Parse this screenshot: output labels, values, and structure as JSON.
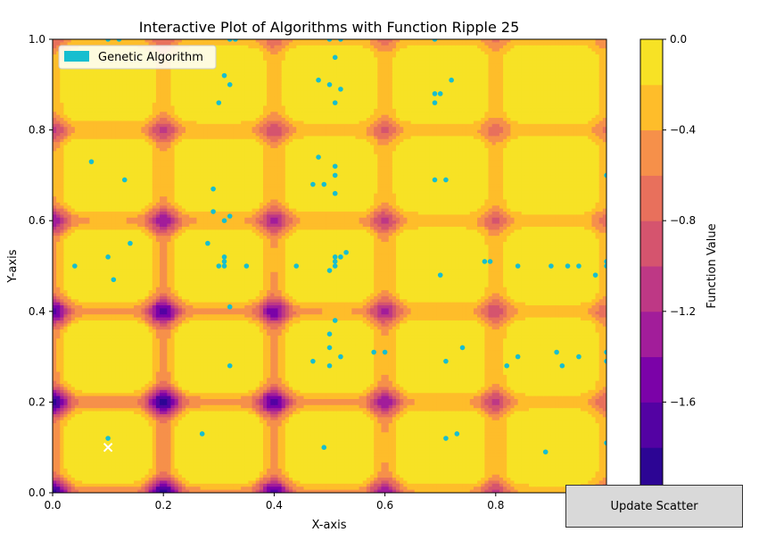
{
  "chart_data": {
    "type": "scatter",
    "title": "Interactive Plot of Algorithms with Function Ripple 25",
    "xlabel": "X-axis",
    "ylabel": "Y-axis",
    "xlim": [
      0.0,
      1.0
    ],
    "ylim": [
      0.0,
      1.0
    ],
    "x_ticks": [
      "0.0",
      "0.2",
      "0.4",
      "0.6",
      "0.8"
    ],
    "y_ticks": [
      "0.0",
      "0.2",
      "0.4",
      "0.6",
      "0.8",
      "1.0"
    ],
    "grid": false,
    "background": "filled contour of Ripple 25 function",
    "legend": {
      "position": "top-left",
      "entries": [
        {
          "label": "Genetic Algorithm",
          "color": "#17becf"
        }
      ]
    },
    "colorbar": {
      "label": "Function Value",
      "ticks": [
        "0.0",
        "−0.4",
        "−0.8",
        "−1.2",
        "−1.6"
      ],
      "range": [
        -2.0,
        0.0
      ],
      "colormap": "plasma",
      "levels": [
        "#2c0594",
        "#5302a3",
        "#7b02a8",
        "#a21d9a",
        "#be3885",
        "#d5546e",
        "#e8705c",
        "#f6904a",
        "#febd2a",
        "#f7e225"
      ]
    },
    "series": [
      {
        "name": "Genetic Algorithm",
        "color": "#17becf",
        "points": [
          [
            0.1,
            1.0
          ],
          [
            0.12,
            1.0
          ],
          [
            0.32,
            1.0
          ],
          [
            0.33,
            1.0
          ],
          [
            0.5,
            1.0
          ],
          [
            0.52,
            1.0
          ],
          [
            0.69,
            1.0
          ],
          [
            0.31,
            0.92
          ],
          [
            0.32,
            0.9
          ],
          [
            0.48,
            0.91
          ],
          [
            0.5,
            0.9
          ],
          [
            0.52,
            0.89
          ],
          [
            0.51,
            0.96
          ],
          [
            0.69,
            0.88
          ],
          [
            0.7,
            0.88
          ],
          [
            0.72,
            0.91
          ],
          [
            0.69,
            0.86
          ],
          [
            0.3,
            0.86
          ],
          [
            0.51,
            0.86
          ],
          [
            0.07,
            0.73
          ],
          [
            0.48,
            0.74
          ],
          [
            0.49,
            0.68
          ],
          [
            0.47,
            0.68
          ],
          [
            0.51,
            0.66
          ],
          [
            0.51,
            0.72
          ],
          [
            0.51,
            0.7
          ],
          [
            0.29,
            0.67
          ],
          [
            0.69,
            0.69
          ],
          [
            0.71,
            0.69
          ],
          [
            0.13,
            0.69
          ],
          [
            1.0,
            0.7
          ],
          [
            0.29,
            0.62
          ],
          [
            0.31,
            0.6
          ],
          [
            0.32,
            0.61
          ],
          [
            0.14,
            0.55
          ],
          [
            0.28,
            0.55
          ],
          [
            0.04,
            0.5
          ],
          [
            0.1,
            0.52
          ],
          [
            0.11,
            0.47
          ],
          [
            0.3,
            0.5
          ],
          [
            0.31,
            0.51
          ],
          [
            0.31,
            0.5
          ],
          [
            0.31,
            0.52
          ],
          [
            0.35,
            0.5
          ],
          [
            0.44,
            0.5
          ],
          [
            0.5,
            0.49
          ],
          [
            0.51,
            0.5
          ],
          [
            0.51,
            0.51
          ],
          [
            0.51,
            0.52
          ],
          [
            0.52,
            0.52
          ],
          [
            0.53,
            0.53
          ],
          [
            0.7,
            0.48
          ],
          [
            0.78,
            0.51
          ],
          [
            0.79,
            0.51
          ],
          [
            0.84,
            0.5
          ],
          [
            0.9,
            0.5
          ],
          [
            0.93,
            0.5
          ],
          [
            0.95,
            0.5
          ],
          [
            0.98,
            0.48
          ],
          [
            1.0,
            0.51
          ],
          [
            1.0,
            0.5
          ],
          [
            0.32,
            0.41
          ],
          [
            0.51,
            0.38
          ],
          [
            0.5,
            0.35
          ],
          [
            0.5,
            0.32
          ],
          [
            0.74,
            0.32
          ],
          [
            0.58,
            0.31
          ],
          [
            0.6,
            0.31
          ],
          [
            0.52,
            0.3
          ],
          [
            0.47,
            0.29
          ],
          [
            0.5,
            0.28
          ],
          [
            0.32,
            0.28
          ],
          [
            0.71,
            0.29
          ],
          [
            0.82,
            0.28
          ],
          [
            0.84,
            0.3
          ],
          [
            0.91,
            0.31
          ],
          [
            0.92,
            0.28
          ],
          [
            0.95,
            0.3
          ],
          [
            1.0,
            0.31
          ],
          [
            1.0,
            0.29
          ],
          [
            0.27,
            0.13
          ],
          [
            0.1,
            0.12
          ],
          [
            0.49,
            0.1
          ],
          [
            0.71,
            0.12
          ],
          [
            0.73,
            0.13
          ],
          [
            0.89,
            0.09
          ],
          [
            1.0,
            0.11
          ]
        ]
      },
      {
        "name": "",
        "marker": "x",
        "color": "#ffffff",
        "points": [
          [
            0.1,
            0.1
          ]
        ]
      }
    ]
  },
  "button": {
    "label": "Update Scatter"
  }
}
